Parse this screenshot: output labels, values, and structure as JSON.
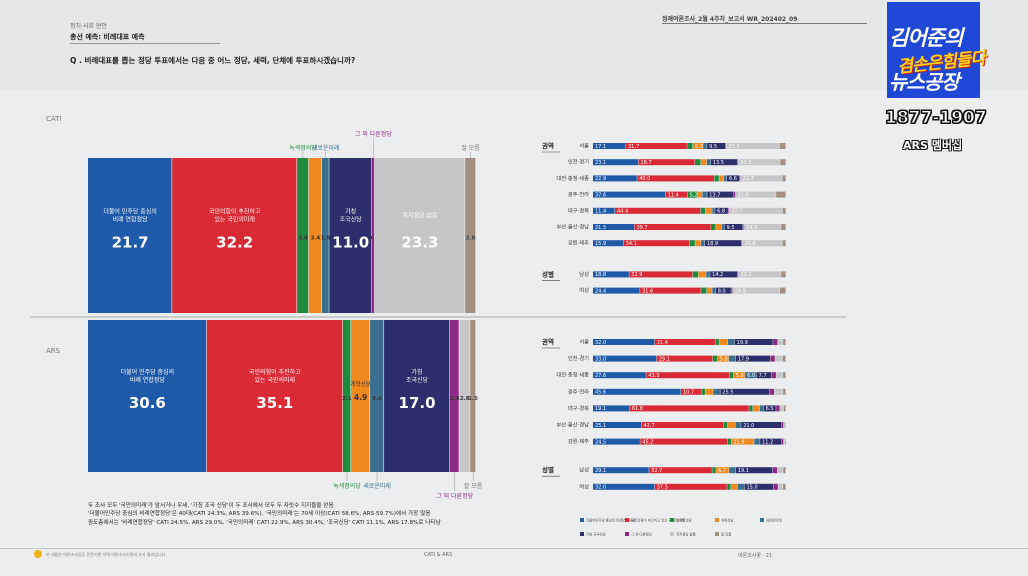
{
  "header": {
    "section": "정치·사회 현안",
    "title": "총선 예측: 비례대표 예측",
    "question": "Q . 비례대표를 뽑는 정당 투표에서는 다음 중 어느 정당, 세력, 단체에 투표하시겠습니까?",
    "report": "정례여론조사_2월 4주차_보고서    WR_202402_09"
  },
  "logo": {
    "line1": "김어준의",
    "line2": "겸손은힘들다",
    "line3": "뉴스공장",
    "number": "1877-1907",
    "sub": "ARS 멤버십"
  },
  "colors": {
    "minjoo": "#1f5aa8",
    "ppp": "#d92a35",
    "green": "#1f8a3c",
    "reform": "#f08a1e",
    "newfuture": "#3b6f8f",
    "cho": "#2c2f6b",
    "other": "#8b2b86",
    "undecided": "#c6c6c9",
    "dk": "#a28f82"
  },
  "legend": [
    "더불어민주당 중심의 비례연합정당",
    "국민의힘이 추진하고 있는 국민의미래",
    "녹색정의당",
    "개혁신당",
    "새로운미래",
    "가칭 조국신당",
    "그 외 다른정당",
    "지지정당 없음",
    "잘 모름"
  ],
  "chart_data": [
    {
      "type": "bar",
      "title": "CATI",
      "stacked": true,
      "orientation": "vertical-segments",
      "callouts": [
        "녹색정의당",
        "새로운미래",
        "그 외 다른정당",
        "잘 모름"
      ],
      "segments": [
        {
          "key": "minjoo",
          "name": "더불어 민주당 중심의 비례 연합정당",
          "value": 21.7
        },
        {
          "key": "ppp",
          "name": "국민의힘이 추진하고 있는 국민의미래",
          "value": 32.2
        },
        {
          "key": "green",
          "name": "",
          "value": 3.0
        },
        {
          "key": "reform",
          "name": "개혁 신당",
          "value": 3.4
        },
        {
          "key": "newfuture",
          "name": "",
          "value": 1.9
        },
        {
          "key": "cho",
          "name": "가칭 조국신당",
          "value": 11.0
        },
        {
          "key": "other",
          "name": "",
          "value": 0.7
        },
        {
          "key": "undecided",
          "name": "지지정당 없음",
          "value": 23.3
        },
        {
          "key": "dk",
          "name": "",
          "value": 2.8
        }
      ]
    },
    {
      "type": "bar",
      "title": "ARS",
      "stacked": true,
      "orientation": "vertical-segments",
      "callouts": [
        "녹색정의당",
        "새로운미래",
        "그 외 다른정당",
        "잘 모름"
      ],
      "segments": [
        {
          "key": "minjoo",
          "name": "더불어 민주당 중심의 비례 연합정당",
          "value": 30.6
        },
        {
          "key": "ppp",
          "name": "국민의힘이 추진하고 있는 국민의미래",
          "value": 35.1
        },
        {
          "key": "green",
          "name": "",
          "value": 2.1
        },
        {
          "key": "reform",
          "name": "개혁신당",
          "value": 4.9
        },
        {
          "key": "newfuture",
          "name": "",
          "value": 3.6
        },
        {
          "key": "cho",
          "name": "가칭 조국신당",
          "value": 17.0
        },
        {
          "key": "other",
          "name": "",
          "value": 2.4
        },
        {
          "key": "undecided",
          "name": "지지정당 없음",
          "value": 2.8
        },
        {
          "key": "dk",
          "name": "",
          "value": 1.5
        }
      ]
    },
    {
      "type": "bar",
      "title": "CATI 권역·성별",
      "stacked": true,
      "orientation": "horizontal",
      "groups": [
        {
          "label": "권역",
          "rows": [
            {
              "label": "서울",
              "values": [
                17.1,
                31.7,
                3.0,
                5.3,
                2.0,
                9.5,
                0.5,
                27.7,
                3.2
              ]
            },
            {
              "label": "인천·경기",
              "values": [
                23.1,
                28.7,
                3.0,
                3.0,
                2.0,
                13.5,
                0.5,
                21.3,
                2.9
              ]
            },
            {
              "label": "대전·충청·세종",
              "values": [
                22.9,
                40.0,
                2.5,
                2.5,
                1.5,
                6.6,
                0.5,
                21.7,
                1.8
              ]
            },
            {
              "label": "광주·전라",
              "values": [
                37.6,
                11.4,
                5.2,
                2.5,
                2.5,
                13.7,
                1.0,
                21.0,
                5.1
              ]
            },
            {
              "label": "대구·경북",
              "values": [
                11.4,
                44.4,
                2.5,
                3.5,
                1.5,
                6.8,
                0.5,
                27.7,
                1.7
              ]
            },
            {
              "label": "부산·울산·경남",
              "values": [
                21.5,
                39.7,
                2.5,
                3.0,
                1.5,
                9.5,
                0.5,
                19.3,
                2.5
              ]
            },
            {
              "label": "강원·제주",
              "values": [
                15.9,
                34.1,
                3.0,
                3.0,
                2.0,
                18.9,
                0.5,
                20.8,
                1.8
              ]
            }
          ]
        },
        {
          "label": "성별",
          "rows": [
            {
              "label": "남성",
              "values": [
                18.8,
                32.9,
                3.0,
                4.0,
                2.0,
                14.2,
                0.5,
                22.1,
                2.5
              ]
            },
            {
              "label": "여성",
              "values": [
                24.4,
                31.6,
                3.0,
                2.8,
                1.8,
                8.0,
                0.8,
                24.5,
                3.1
              ]
            }
          ]
        }
      ],
      "data_labels": {
        "서울": [
          "17.1",
          "31.7",
          "",
          "5.3",
          "",
          "9.5",
          "",
          "27.7",
          ""
        ],
        "인천·경기": [
          "23.1",
          "28.7",
          "",
          "",
          "",
          "13.5",
          "",
          "21.3",
          ""
        ],
        "대전·충청·세종": [
          "22.9",
          "40.0",
          "",
          "",
          "",
          "6.6",
          "",
          "21.7",
          ""
        ],
        "광주·전라": [
          "37.6",
          "11.4",
          "5.2",
          "",
          "",
          "13.7",
          "",
          "21.0",
          ""
        ],
        "대구·경북": [
          "11.4",
          "44.4",
          "",
          "",
          "",
          "6.8",
          "",
          "27.7",
          ""
        ],
        "부산·울산·경남": [
          "21.5",
          "39.7",
          "",
          "",
          "",
          "9.5",
          "",
          "19.3",
          ""
        ],
        "강원·제주": [
          "15.9",
          "34.1",
          "",
          "",
          "",
          "18.9",
          "",
          "20.8",
          ""
        ],
        "남성": [
          "18.8",
          "32.9",
          "",
          "",
          "",
          "14.2",
          "",
          "22.1",
          ""
        ],
        "여성": [
          "24.4",
          "31.6",
          "",
          "",
          "",
          "8.0",
          "",
          "24.5",
          ""
        ]
      }
    },
    {
      "type": "bar",
      "title": "ARS 권역·성별",
      "stacked": true,
      "orientation": "horizontal",
      "groups": [
        {
          "label": "권역",
          "rows": [
            {
              "label": "서울",
              "values": [
                32.0,
                31.4,
                2.0,
                4.5,
                3.5,
                19.9,
                2.5,
                2.7,
                1.5
              ]
            },
            {
              "label": "인천·경기",
              "values": [
                33.0,
                29.1,
                2.5,
                5.8,
                3.6,
                17.9,
                2.5,
                3.9,
                1.7
              ]
            },
            {
              "label": "대전·충청·세종",
              "values": [
                27.6,
                43.3,
                2.0,
                5.9,
                6.0,
                7.7,
                2.5,
                3.5,
                1.5
              ]
            },
            {
              "label": "광주·전라",
              "values": [
                45.6,
                10.7,
                2.0,
                4.0,
                3.7,
                25.5,
                2.5,
                4.5,
                1.5
              ]
            },
            {
              "label": "대구·경북",
              "values": [
                19.1,
                61.8,
                2.0,
                3.5,
                2.0,
                6.5,
                2.0,
                2.0,
                1.1
              ]
            },
            {
              "label": "부산·울산·경남",
              "values": [
                25.1,
                42.7,
                2.0,
                4.0,
                3.0,
                21.0,
                1.0,
                1.0,
                0.2
              ]
            },
            {
              "label": "강원·제주",
              "values": [
                24.5,
                45.2,
                2.0,
                11.9,
                3.0,
                11.2,
                1.0,
                0.7,
                0.5
              ]
            }
          ]
        },
        {
          "label": "성별",
          "rows": [
            {
              "label": "남성",
              "values": [
                29.1,
                32.7,
                2.0,
                6.7,
                3.5,
                19.1,
                2.5,
                3.0,
                1.4
              ]
            },
            {
              "label": "여성",
              "values": [
                32.0,
                37.5,
                2.0,
                3.5,
                3.5,
                15.0,
                2.5,
                2.5,
                1.5
              ]
            }
          ]
        }
      ],
      "data_labels": {
        "서울": [
          "32.0",
          "31.4",
          "",
          "",
          "",
          "19.9",
          "",
          "",
          ""
        ],
        "인천·경기": [
          "33.0",
          "29.1",
          "",
          "5.8",
          "",
          "17.9",
          "",
          "",
          ""
        ],
        "대전·충청·세종": [
          "27.6",
          "43.3",
          "",
          "5.9",
          "6.0",
          "7.7",
          "",
          "",
          ""
        ],
        "광주·전라": [
          "45.6",
          "10.7",
          "",
          "",
          "",
          "25.5",
          "",
          "",
          ""
        ],
        "대구·경북": [
          "19.1",
          "61.8",
          "",
          "",
          "",
          "6.5",
          "",
          "",
          ""
        ],
        "부산·울산·경남": [
          "25.1",
          "42.7",
          "",
          "",
          "",
          "21.0",
          "",
          "",
          ""
        ],
        "강원·제주": [
          "24.5",
          "45.2",
          "",
          "11.9",
          "",
          "11.2",
          "",
          "",
          ""
        ],
        "남성": [
          "29.1",
          "32.7",
          "",
          "6.7",
          "",
          "19.1",
          "",
          "",
          ""
        ],
        "여성": [
          "32.0",
          "37.5",
          "",
          "",
          "",
          "15.0",
          "",
          "",
          ""
        ]
      }
    }
  ],
  "summary": [
    "두 조사 모두 '국민의미래'가 앞서거나 우세, '가칭 조국 신당'이 두 조사에서 모두 두 자릿수 지지율을 얻음",
    "'더불어민주당 중심의 비례연합정당'은 40대(CATI 24.3%, ARS 39.6%), '국민의미래'는 70세 이상(CATI 58.6%, ARS 59.7%)에서 가장 많음",
    "중도층에서는 '비례연합정당' CATI 24.5%, ARS 29.0%, '국민의미래' CATI 22.9%, ARS 30.4%, '조국신당' CATI 11.1%, ARS 17.8%로 나타남"
  ],
  "footer": {
    "left": "본 내용은 여론조사업무 전문기관 지역 여론조사기관의 조사 결과입니다.",
    "mid": "CATI & ARS",
    "right": "여론조사꽃 · 21"
  }
}
